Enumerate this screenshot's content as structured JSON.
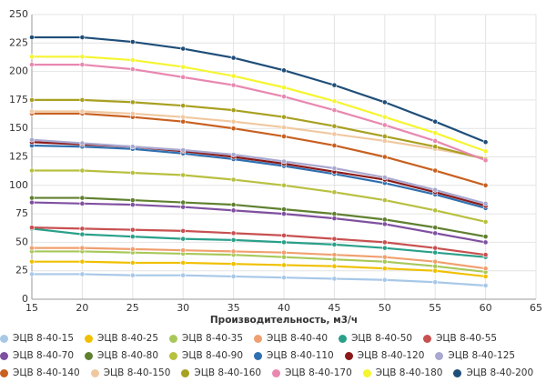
{
  "chart_data": {
    "type": "line",
    "x_label": "Производительность, м3/ч",
    "x": [
      15,
      20,
      25,
      30,
      35,
      40,
      45,
      50,
      55,
      60
    ],
    "xlim": [
      15,
      65
    ],
    "xticks": [
      15,
      20,
      25,
      30,
      35,
      40,
      45,
      50,
      55,
      60,
      65
    ],
    "ylim": [
      0,
      250
    ],
    "yticks": [
      0,
      25,
      50,
      75,
      100,
      125,
      150,
      175,
      200,
      225,
      250
    ],
    "grid": true,
    "legend": "bottom",
    "series": [
      {
        "name": "ЭЦВ 8-40-15",
        "color": "#a8c8e8",
        "values": [
          22,
          22,
          21,
          21,
          20,
          19,
          18,
          17,
          15,
          12
        ]
      },
      {
        "name": "ЭЦВ 8-40-25",
        "color": "#f0c000",
        "values": [
          33,
          33,
          32,
          32,
          31,
          30,
          29,
          27,
          25,
          20
        ]
      },
      {
        "name": "ЭЦВ 8-40-35",
        "color": "#a8c85a",
        "values": [
          42,
          42,
          41,
          40,
          39,
          37,
          35,
          33,
          29,
          24
        ]
      },
      {
        "name": "ЭЦВ 8-40-40",
        "color": "#f0a070",
        "values": [
          45,
          45,
          44,
          43,
          42,
          41,
          39,
          37,
          33,
          27
        ]
      },
      {
        "name": "ЭЦВ 8-40-50",
        "color": "#2aa08a",
        "values": [
          62,
          57,
          55,
          53,
          52,
          50,
          48,
          45,
          41,
          37
        ]
      },
      {
        "name": "ЭЦВ 8-40-55",
        "color": "#c85050",
        "values": [
          63,
          62,
          61,
          60,
          58,
          56,
          53,
          50,
          45,
          39
        ]
      },
      {
        "name": "ЭЦВ 8-40-70",
        "color": "#8050a0",
        "values": [
          85,
          84,
          83,
          81,
          78,
          75,
          71,
          66,
          58,
          50
        ]
      },
      {
        "name": "ЭЦВ 8-40-80",
        "color": "#608030",
        "values": [
          89,
          89,
          87,
          85,
          83,
          79,
          75,
          70,
          63,
          55
        ]
      },
      {
        "name": "ЭЦВ 8-40-90",
        "color": "#b8c040",
        "values": [
          113,
          113,
          111,
          109,
          105,
          100,
          94,
          87,
          78,
          68
        ]
      },
      {
        "name": "ЭЦВ 8-40-110",
        "color": "#3070b0",
        "values": [
          135,
          134,
          132,
          128,
          123,
          117,
          110,
          102,
          92,
          80
        ]
      },
      {
        "name": "ЭЦВ 8-40-120",
        "color": "#8b1a1a",
        "values": [
          138,
          136,
          134,
          130,
          125,
          119,
          112,
          105,
          94,
          82
        ]
      },
      {
        "name": "ЭЦВ 8-40-125",
        "color": "#a8a8d0",
        "values": [
          140,
          137,
          134,
          131,
          127,
          121,
          115,
          107,
          96,
          84
        ]
      },
      {
        "name": "ЭЦВ 8-40-140",
        "color": "#c86020",
        "values": [
          163,
          163,
          160,
          156,
          150,
          143,
          135,
          125,
          113,
          100
        ]
      },
      {
        "name": "ЭЦВ 8-40-150",
        "color": "#f0c8a0",
        "values": [
          165,
          165,
          163,
          160,
          156,
          151,
          145,
          139,
          132,
          124
        ]
      },
      {
        "name": "ЭЦВ 8-40-160",
        "color": "#a8a020",
        "values": [
          175,
          175,
          173,
          170,
          166,
          160,
          152,
          143,
          134,
          123
        ]
      },
      {
        "name": "ЭЦВ 8-40-170",
        "color": "#e888b0",
        "values": [
          206,
          206,
          202,
          195,
          188,
          178,
          166,
          153,
          139,
          122
        ]
      },
      {
        "name": "ЭЦВ 8-40-180",
        "color": "#f5f530",
        "values": [
          213,
          213,
          210,
          204,
          196,
          186,
          174,
          160,
          146,
          130
        ]
      },
      {
        "name": "ЭЦВ 8-40-200",
        "color": "#1f4e79",
        "values": [
          230,
          230,
          226,
          220,
          212,
          201,
          188,
          173,
          156,
          138
        ]
      }
    ]
  }
}
